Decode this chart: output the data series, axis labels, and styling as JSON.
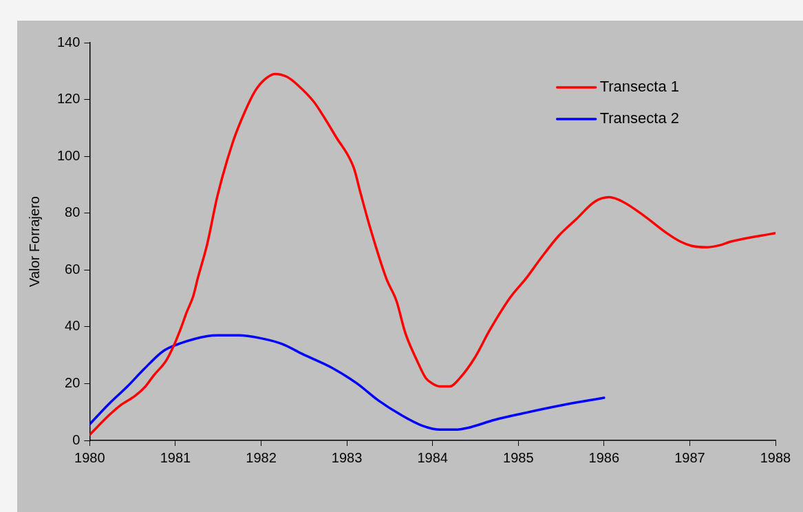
{
  "chart_data": {
    "type": "line",
    "ylabel": "Valor Forrajero",
    "xlim": [
      1980,
      1988
    ],
    "xticks": [
      1980,
      1981,
      1982,
      1983,
      1984,
      1985,
      1986,
      1987,
      1988
    ],
    "ylim": [
      0,
      140
    ],
    "yticks": [
      0,
      20,
      40,
      60,
      80,
      100,
      120,
      140
    ],
    "grid": false,
    "legend": "top right",
    "marker": "none",
    "line_style": "solid",
    "series": [
      {
        "name": "Transecta 1",
        "color": "#ff0000",
        "x": [
          1980,
          1980.23,
          1980.36,
          1980.53,
          1980.65,
          1980.75,
          1980.89,
          1980.99,
          1981.07,
          1981.13,
          1981.21,
          1981.26,
          1981.37,
          1981.49,
          1981.67,
          1981.8,
          1981.93,
          1982.04,
          1982.16,
          1982.3,
          1982.43,
          1982.62,
          1982.75,
          1982.87,
          1983.08,
          1983.16,
          1983.27,
          1983.46,
          1983.58,
          1983.68,
          1983.82,
          1983.92,
          1984,
          1984.09,
          1984.2,
          1984.32,
          1984.49,
          1984.67,
          1984.91,
          1985.09,
          1985.26,
          1985.47,
          1985.68,
          1985.89,
          1986.06,
          1986.22,
          1986.47,
          1986.73,
          1986.89,
          1987.02,
          1987.19,
          1987.35,
          1987.48,
          1988
        ],
        "values": [
          2,
          9,
          12.4,
          15.7,
          19,
          23,
          28,
          34,
          40,
          45,
          51,
          57,
          69,
          86,
          105,
          115,
          123,
          127,
          129,
          128,
          125,
          119,
          113,
          107,
          96,
          87,
          75,
          57,
          49,
          38,
          28,
          22,
          20,
          19,
          19,
          22,
          29,
          39,
          50.5,
          57,
          64,
          72,
          78,
          84,
          85.6,
          84,
          79,
          73,
          70,
          68.5,
          68,
          68.7,
          70,
          73
        ]
      },
      {
        "name": "Transecta 2",
        "color": "#0000ff",
        "x": [
          1980,
          1980.23,
          1980.44,
          1980.63,
          1980.86,
          1981.07,
          1981.37,
          1981.49,
          1981.74,
          1981.99,
          1982.24,
          1982.49,
          1982.83,
          1983.12,
          1983.37,
          1983.63,
          1983.88,
          1984.09,
          1984.26,
          1984.42,
          1984.72,
          1985.05,
          1985.51,
          1986
        ],
        "values": [
          5.7,
          13,
          19,
          25,
          31.5,
          34.3,
          36.7,
          37,
          37,
          36,
          34,
          30.3,
          25.5,
          20,
          14,
          9,
          5.2,
          3.8,
          3.8,
          4.5,
          7.2,
          9.5,
          12.4,
          15
        ]
      }
    ]
  }
}
